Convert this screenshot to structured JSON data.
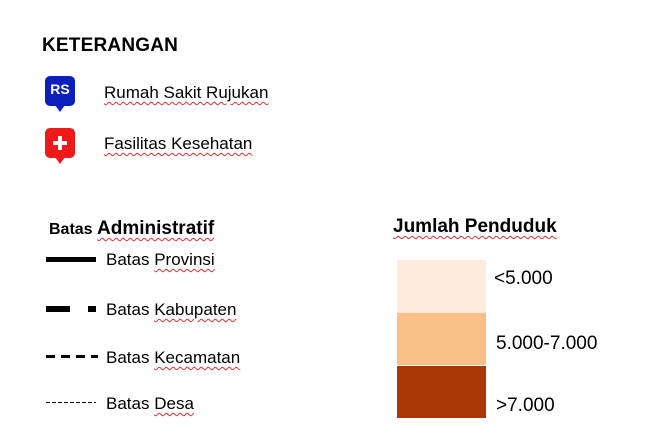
{
  "legend": {
    "title": "KETERANGAN",
    "items": [
      {
        "marker_text": "RS",
        "label": "Rumah Sakit Rujukan",
        "icon": "rs-marker-icon",
        "color": "#0b1fbf"
      },
      {
        "label": "Fasilitas Kesehatan",
        "icon": "plus-marker-icon",
        "color": "#f01818"
      }
    ]
  },
  "boundaries": {
    "title_small": "Batas",
    "title_big": "Administratif",
    "items": [
      {
        "label_prefix": "Batas",
        "label_word": "Provinsi",
        "style": "solid-thick"
      },
      {
        "label_prefix": "Batas",
        "label_word": "Kabupaten",
        "style": "long-dash"
      },
      {
        "label_prefix": "Batas",
        "label_word": "Kecamatan",
        "style": "dashed"
      },
      {
        "label_prefix": "Batas",
        "label_word": "Desa",
        "style": "dotted"
      }
    ]
  },
  "population": {
    "title": "Jumlah Penduduk",
    "classes": [
      {
        "label": "<5.000",
        "color": "#fdebdc"
      },
      {
        "label": "5.000-7.000",
        "color": "#fdbf88"
      },
      {
        "label": ">7.000",
        "color": "#a93707"
      }
    ]
  }
}
